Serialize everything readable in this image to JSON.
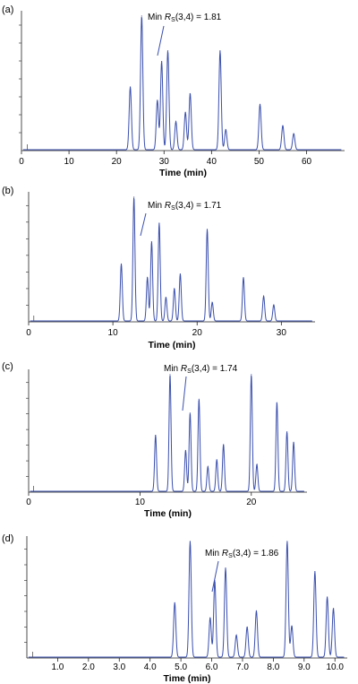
{
  "chart_data": [
    {
      "type": "line",
      "panel_label": "(a)",
      "xlabel": "Time (min)",
      "ylabel": "",
      "xlim": [
        0,
        68
      ],
      "xticks": [
        0,
        10,
        20,
        30,
        40,
        50,
        60
      ],
      "xtick_labels": [
        "0",
        "10",
        "20",
        "30",
        "40",
        "50",
        "60"
      ],
      "annotation": {
        "prefix": "Min ",
        "symbol": "R",
        "sub": "S",
        "suffix": "(3,4) = 1.81",
        "target_x": 29.5
      },
      "peaks": [
        {
          "t": 22.9,
          "h": 0.47
        },
        {
          "t": 25.3,
          "h": 1.0
        },
        {
          "t": 28.6,
          "h": 0.37
        },
        {
          "t": 29.5,
          "h": 0.66
        },
        {
          "t": 30.8,
          "h": 0.74
        },
        {
          "t": 32.5,
          "h": 0.21
        },
        {
          "t": 34.5,
          "h": 0.28
        },
        {
          "t": 35.5,
          "h": 0.42
        },
        {
          "t": 41.8,
          "h": 0.74
        },
        {
          "t": 43.0,
          "h": 0.15
        },
        {
          "t": 50.2,
          "h": 0.34
        },
        {
          "t": 55.0,
          "h": 0.18
        },
        {
          "t": 57.3,
          "h": 0.12
        }
      ]
    },
    {
      "type": "line",
      "panel_label": "(b)",
      "xlabel": "Time (min)",
      "ylabel": "",
      "xlim": [
        0,
        34
      ],
      "xticks": [
        0,
        10,
        20,
        30
      ],
      "xtick_labels": [
        "0",
        "10",
        "20",
        "30"
      ],
      "annotation": {
        "prefix": "Min ",
        "symbol": "R",
        "sub": "S",
        "suffix": "(3,4) = 1.71",
        "target_x": 14.6
      },
      "peaks": [
        {
          "t": 11.0,
          "h": 0.46
        },
        {
          "t": 12.5,
          "h": 1.0
        },
        {
          "t": 14.1,
          "h": 0.35
        },
        {
          "t": 14.6,
          "h": 0.64
        },
        {
          "t": 15.5,
          "h": 0.79
        },
        {
          "t": 16.3,
          "h": 0.19
        },
        {
          "t": 17.3,
          "h": 0.26
        },
        {
          "t": 18.0,
          "h": 0.38
        },
        {
          "t": 21.2,
          "h": 0.74
        },
        {
          "t": 21.8,
          "h": 0.15
        },
        {
          "t": 25.5,
          "h": 0.35
        },
        {
          "t": 27.9,
          "h": 0.2
        },
        {
          "t": 29.1,
          "h": 0.13
        }
      ]
    },
    {
      "type": "line",
      "panel_label": "(c)",
      "xlabel": "Time (min)",
      "ylabel": "",
      "xlim": [
        0,
        25
      ],
      "xticks": [
        0,
        10,
        20
      ],
      "xtick_labels": [
        "0",
        "10",
        "20"
      ],
      "annotation": {
        "prefix": "Min ",
        "symbol": "R",
        "sub": "S",
        "suffix": "(3,4) = 1.74",
        "target_x": 14.5
      },
      "peaks": [
        {
          "t": 11.4,
          "h": 0.48
        },
        {
          "t": 12.7,
          "h": 1.0
        },
        {
          "t": 14.1,
          "h": 0.35
        },
        {
          "t": 14.5,
          "h": 0.67
        },
        {
          "t": 15.3,
          "h": 0.79
        },
        {
          "t": 16.1,
          "h": 0.21
        },
        {
          "t": 16.9,
          "h": 0.27
        },
        {
          "t": 17.5,
          "h": 0.4
        },
        {
          "t": 20.0,
          "h": 1.0
        },
        {
          "t": 20.5,
          "h": 0.23
        },
        {
          "t": 22.3,
          "h": 0.76
        },
        {
          "t": 23.2,
          "h": 0.51
        },
        {
          "t": 23.8,
          "h": 0.42
        }
      ]
    },
    {
      "type": "line",
      "panel_label": "(d)",
      "xlabel": "Time (min)",
      "ylabel": "",
      "xlim": [
        0,
        10.4
      ],
      "xticks": [
        1,
        2,
        3,
        4,
        5,
        6,
        7,
        8,
        9,
        10
      ],
      "xtick_labels": [
        "1.0",
        "2.0",
        "3.0",
        "4.0",
        "5.0",
        "6.0",
        "7.0",
        "8.0",
        "9.0",
        "10.0"
      ],
      "annotation": {
        "prefix": "Min ",
        "symbol": "R",
        "sub": "S",
        "suffix": "(3,4) = 1.86",
        "target_x": 6.0
      },
      "peaks": [
        {
          "t": 4.8,
          "h": 0.47
        },
        {
          "t": 5.3,
          "h": 1.0
        },
        {
          "t": 5.95,
          "h": 0.34
        },
        {
          "t": 6.1,
          "h": 0.66
        },
        {
          "t": 6.45,
          "h": 0.77
        },
        {
          "t": 6.8,
          "h": 0.19
        },
        {
          "t": 7.15,
          "h": 0.26
        },
        {
          "t": 7.45,
          "h": 0.4
        },
        {
          "t": 8.45,
          "h": 1.0
        },
        {
          "t": 8.6,
          "h": 0.27
        },
        {
          "t": 9.35,
          "h": 0.74
        },
        {
          "t": 9.75,
          "h": 0.52
        },
        {
          "t": 9.95,
          "h": 0.42
        }
      ]
    }
  ],
  "colors": {
    "trace": "#3a4fae",
    "axis": "#222222",
    "text": "#000000"
  }
}
